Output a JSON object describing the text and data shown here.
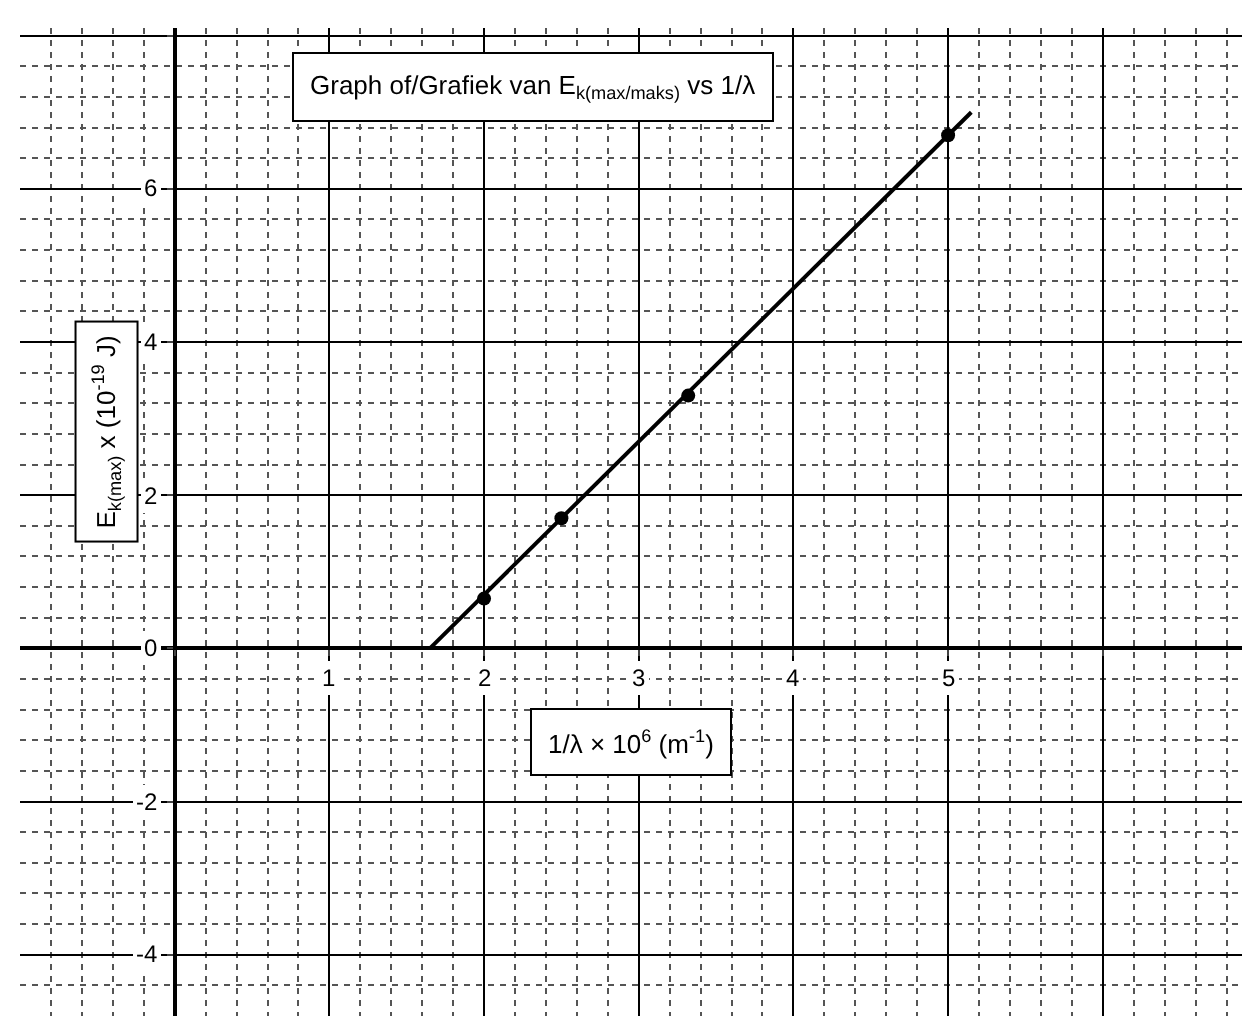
{
  "chart_data": {
    "type": "scatter",
    "title": "Graph of/Grafiek van E$_{k(max/maks)}$ vs 1/λ",
    "xlabel": "1/λ × 10$^{6}$ (m$^{-1}$)",
    "ylabel": "E$_{k(max)}$ x (10$^{-19}$ J)",
    "x": [
      2.0,
      2.5,
      3.32,
      5.0
    ],
    "series": [
      {
        "color": "#000000",
        "values": [
          0.65,
          1.7,
          3.3,
          6.7
        ]
      },
      {
        "type": "line",
        "marker": "none",
        "color": "#000000",
        "x": [
          1.65,
          5.15
        ],
        "values": [
          0,
          7.0
        ]
      }
    ],
    "xlim": [
      -1,
      6.9
    ],
    "ylim": [
      -4.8,
      8.1
    ],
    "xticks": [
      {
        "value": 0,
        "label": null
      },
      1,
      2,
      3,
      4,
      5,
      {
        "value": 6,
        "label": null
      }
    ],
    "yticks": [
      -4,
      -2,
      0,
      2,
      4,
      6,
      {
        "value": 8,
        "label": null
      }
    ],
    "grid": true,
    "marker": "circle",
    "line_style": "solid"
  }
}
